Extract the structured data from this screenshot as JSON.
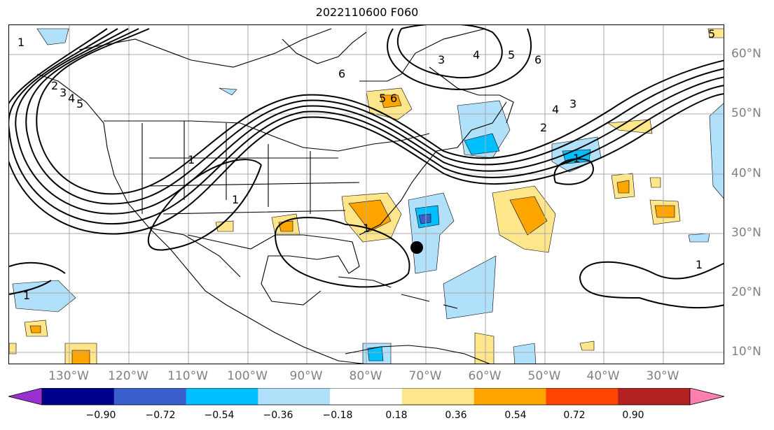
{
  "title": "2022110600 F060",
  "lon_labels": [
    "130°W",
    "120°W",
    "110°W",
    "100°W",
    "90°W",
    "80°W",
    "70°W",
    "60°W",
    "50°W",
    "40°W",
    "30°W"
  ],
  "lat_labels": [
    "60°N",
    "50°N",
    "40°N",
    "30°N",
    "20°N",
    "10°N"
  ],
  "colorbar": {
    "ticks": [
      "−0.90",
      "−0.72",
      "−0.54",
      "−0.36",
      "−0.18",
      "0.18",
      "0.36",
      "0.54",
      "0.72",
      "0.90"
    ],
    "colors": [
      "#9b30d0",
      "#00008b",
      "#3a5fcd",
      "#00bfff",
      "#b0e0fa",
      "#ffffff",
      "#ffe68a",
      "#ffa500",
      "#ff4500",
      "#b22222",
      "#ff80b0"
    ]
  },
  "contour_labels": [
    "1",
    "1",
    "1",
    "1",
    "1",
    "1",
    "1",
    "2",
    "3",
    "4",
    "5",
    "6",
    "2",
    "3",
    "4",
    "5",
    "6",
    "3",
    "4",
    "5",
    "6",
    "5"
  ],
  "marker": "storm-center-dot"
}
